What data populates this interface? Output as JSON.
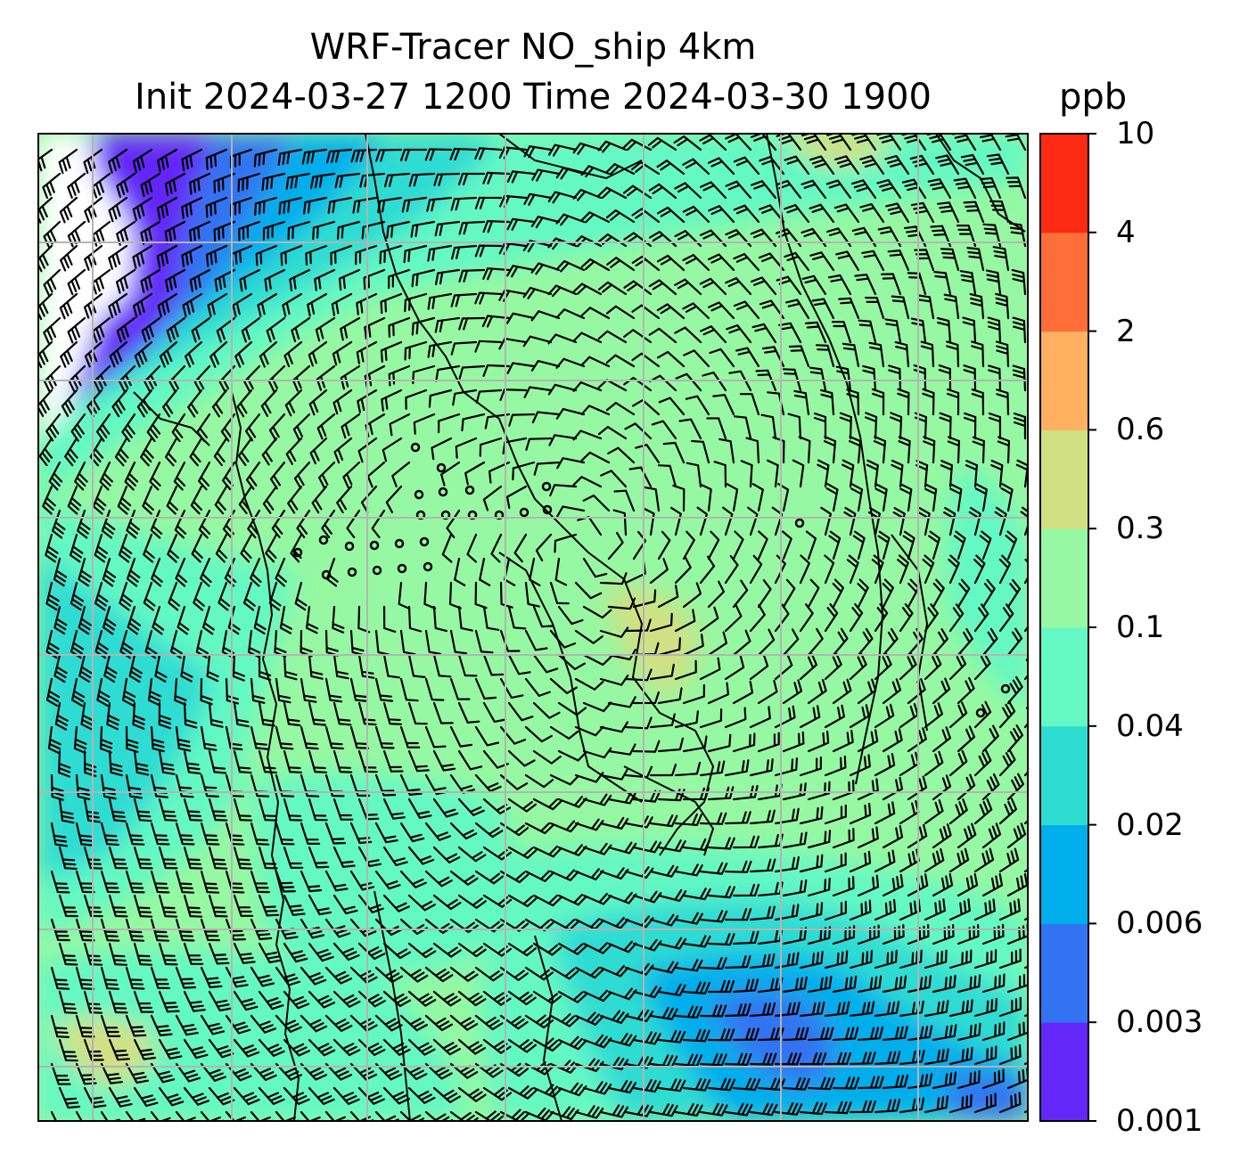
{
  "figure": {
    "title_line1": "WRF-Tracer NO_ship 4km",
    "title_line2": "Init 2024-03-27 1200 Time 2024-03-30 1900",
    "units": "ppb",
    "field": "NO_ship tracer concentration with wind barbs",
    "gridlines": true,
    "background_missing_color": "#ffffff"
  },
  "colorbar": {
    "levels": [
      "0.001",
      "0.003",
      "0.006",
      "0.02",
      "0.04",
      "0.1",
      "0.3",
      "0.6",
      "2",
      "4",
      "10"
    ],
    "colors": [
      "#6428fa",
      "#3273f2",
      "#00aeeb",
      "#2edcd2",
      "#64f8c4",
      "#96f8a2",
      "#d2e084",
      "#ffb060",
      "#ff6e38",
      "#ff2a14"
    ]
  },
  "icons": [
    "wind-barb-icon",
    "calm-circle-icon",
    "coastline"
  ]
}
